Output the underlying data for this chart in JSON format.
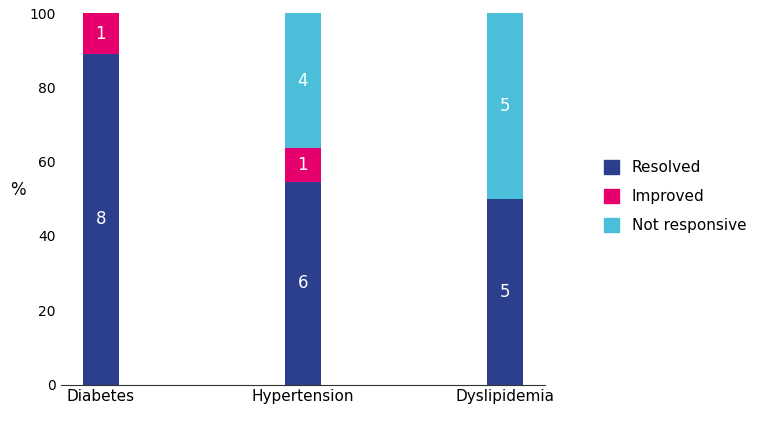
{
  "categories": [
    "Diabetes",
    "Hypertension",
    "Dyslipidemia"
  ],
  "resolved_pct": [
    88.89,
    54.55,
    50.0
  ],
  "improved_pct": [
    11.11,
    9.09,
    0.0
  ],
  "not_responsive_pct": [
    0.0,
    36.36,
    50.0
  ],
  "resolved_counts": [
    "8",
    "6",
    "5"
  ],
  "improved_counts": [
    "1",
    "1",
    ""
  ],
  "not_responsive_counts": [
    "",
    "4",
    "5"
  ],
  "colors": {
    "resolved": "#2b3f8c",
    "improved": "#e5006d",
    "not_responsive": "#4bbfda"
  },
  "ylabel": "%",
  "ylim": [
    0,
    100
  ],
  "yticks": [
    0,
    20,
    40,
    60,
    80,
    100
  ],
  "legend_labels": [
    "Resolved",
    "Improved",
    "Not responsive"
  ],
  "bar_width": 0.18,
  "text_color": "white",
  "text_fontsize": 12,
  "tick_fontsize": 10,
  "xlabel_fontsize": 11,
  "ylabel_fontsize": 12
}
